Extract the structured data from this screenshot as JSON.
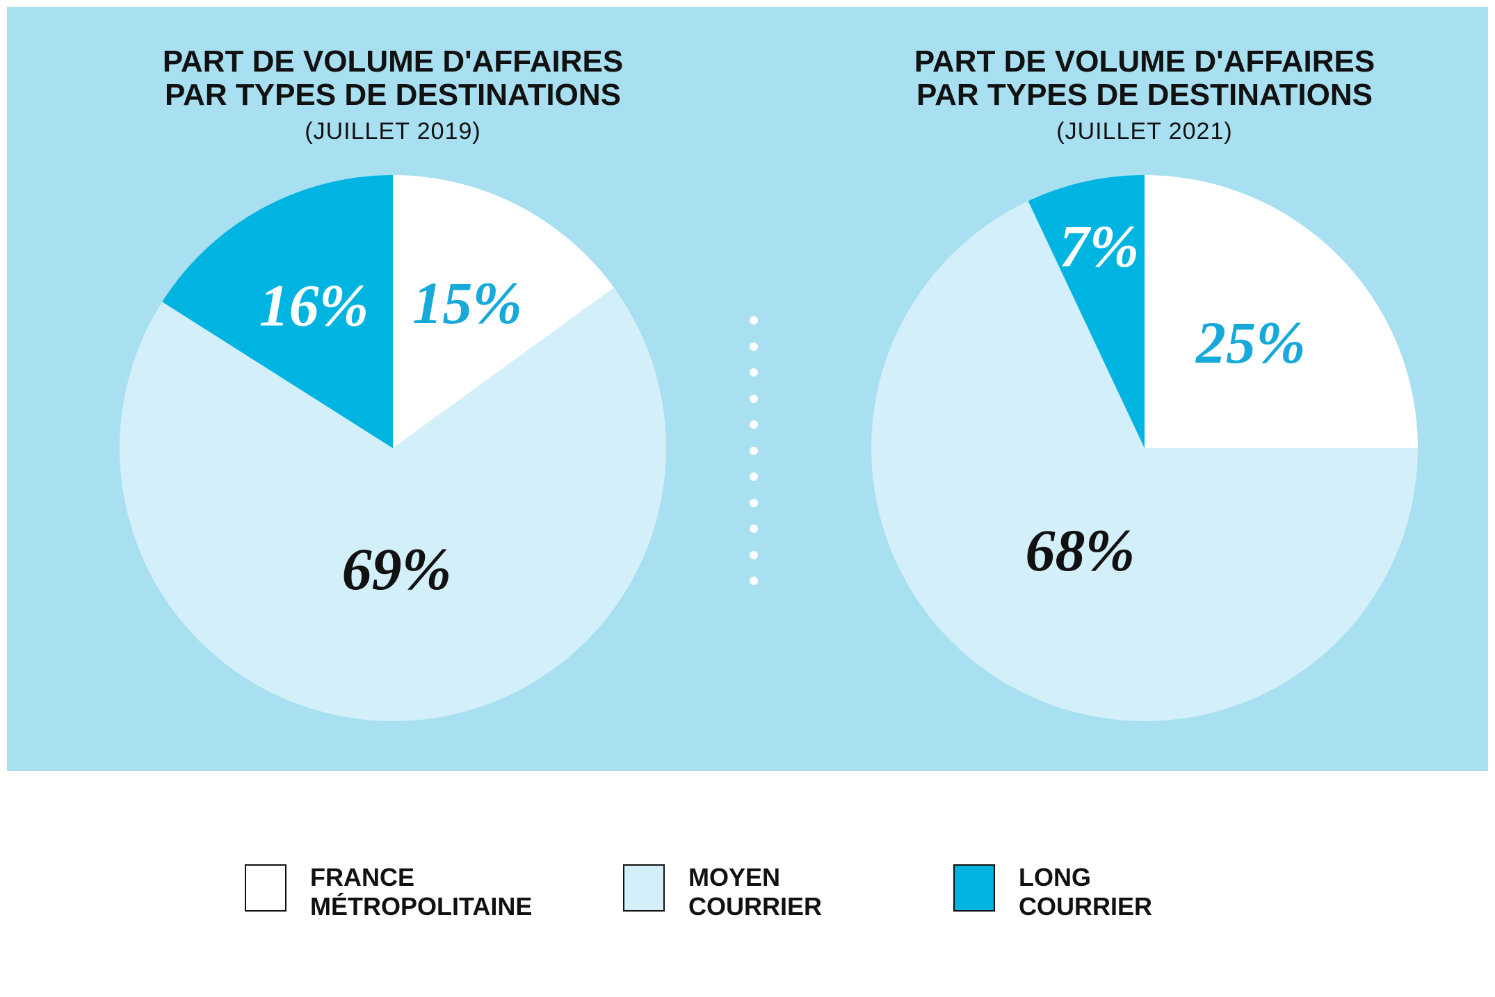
{
  "colors": {
    "background_panel": "#a8e0f1",
    "france_metropolitaine": "#ffffff",
    "moyen_courrier": "#d3eff9",
    "long_courrier": "#00b4e1",
    "text_dark": "#111111",
    "label_accent": "#17a9d9",
    "label_white": "#ffffff"
  },
  "legend": [
    {
      "line1": "FRANCE",
      "line2": "MÉTROPOLITAINE",
      "color": "#ffffff"
    },
    {
      "line1": "MOYEN",
      "line2": "COURRIER",
      "color": "#d3eff9"
    },
    {
      "line1": "LONG",
      "line2": "COURRIER",
      "color": "#00b4e1"
    }
  ],
  "chart_data": [
    {
      "type": "pie",
      "title_line1": "PART DE VOLUME D'AFFAIRES",
      "title_line2": "PAR TYPES DE DESTINATIONS",
      "subtitle": "(JUILLET 2019)",
      "start_angle": "12 o'clock, clockwise",
      "slices": [
        {
          "name": "FRANCE MÉTROPOLITAINE",
          "value": 15,
          "label": "15%",
          "color": "#ffffff",
          "label_color": "#17a9d9"
        },
        {
          "name": "MOYEN COURRIER",
          "value": 69,
          "label": "69%",
          "color": "#d3eff9",
          "label_color": "#111111"
        },
        {
          "name": "LONG COURRIER",
          "value": 16,
          "label": "16%",
          "color": "#00b4e1",
          "label_color": "#ffffff"
        }
      ]
    },
    {
      "type": "pie",
      "title_line1": "PART DE VOLUME D'AFFAIRES",
      "title_line2": "PAR TYPES DE DESTINATIONS",
      "subtitle": "(JUILLET 2021)",
      "start_angle": "12 o'clock, clockwise",
      "slices": [
        {
          "name": "FRANCE MÉTROPOLITAINE",
          "value": 25,
          "label": "25%",
          "color": "#ffffff",
          "label_color": "#17a9d9"
        },
        {
          "name": "MOYEN COURRIER",
          "value": 68,
          "label": "68%",
          "color": "#d3eff9",
          "label_color": "#111111"
        },
        {
          "name": "LONG COURRIER",
          "value": 7,
          "label": "7%",
          "color": "#00b4e1",
          "label_color": "#ffffff"
        }
      ]
    }
  ]
}
